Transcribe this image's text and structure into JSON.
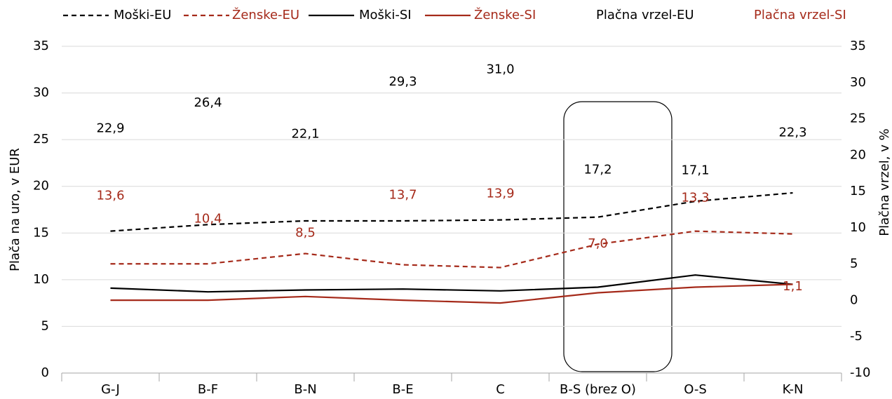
{
  "chart_data": {
    "type": "line",
    "categories": [
      "G-J",
      "B-F",
      "B-N",
      "B-E",
      "C",
      "B-S (brez O)",
      "O-S",
      "K-N"
    ],
    "ylabel": "Plača na uro, v  EUR",
    "y2label": "Plačna vrzel, v %",
    "ylim": [
      0,
      35
    ],
    "yticks": [
      0,
      5,
      10,
      15,
      20,
      25,
      30,
      35
    ],
    "y2lim": [
      -10,
      35
    ],
    "y2ticks": [
      -10,
      -5,
      0,
      5,
      10,
      15,
      20,
      25,
      30,
      35
    ],
    "grid": true,
    "series": [
      {
        "name": "Moški-EU",
        "color": "#000000",
        "dash": true,
        "values": [
          15.2,
          15.9,
          16.3,
          16.3,
          16.4,
          16.7,
          18.4,
          19.3
        ]
      },
      {
        "name": "Ženske-EU",
        "color": "#a52a1a",
        "dash": true,
        "values": [
          11.7,
          11.7,
          12.8,
          11.6,
          11.3,
          13.8,
          15.2,
          14.9
        ]
      },
      {
        "name": "Moški-SI",
        "color": "#000000",
        "dash": false,
        "values": [
          9.1,
          8.7,
          8.9,
          9.0,
          8.8,
          9.2,
          10.5,
          9.5
        ]
      },
      {
        "name": "Ženske-SI",
        "color": "#a52a1a",
        "dash": false,
        "values": [
          7.8,
          7.8,
          8.2,
          7.8,
          7.5,
          8.6,
          9.2,
          9.5
        ]
      },
      {
        "name": "Plačna vrzel-EU",
        "color": "#000000",
        "style": "labels",
        "axis": "y2",
        "values": [
          22.9,
          26.4,
          22.1,
          29.3,
          31.0,
          17.2,
          17.1,
          22.3
        ],
        "value_labels": [
          "22,9",
          "26,4",
          "22,1",
          "29,3",
          "31,0",
          "17,2",
          "17,1",
          "22,3"
        ]
      },
      {
        "name": "Plačna vrzel-SI",
        "color": "#a52a1a",
        "style": "labels",
        "axis": "y2",
        "values": [
          13.6,
          10.4,
          8.5,
          13.7,
          13.9,
          7.0,
          13.3,
          1.1
        ],
        "value_labels": [
          "13,6",
          "10,4",
          "8,5",
          "13,7",
          "13,9",
          "7,0",
          "13,3",
          "1,1"
        ]
      }
    ]
  }
}
